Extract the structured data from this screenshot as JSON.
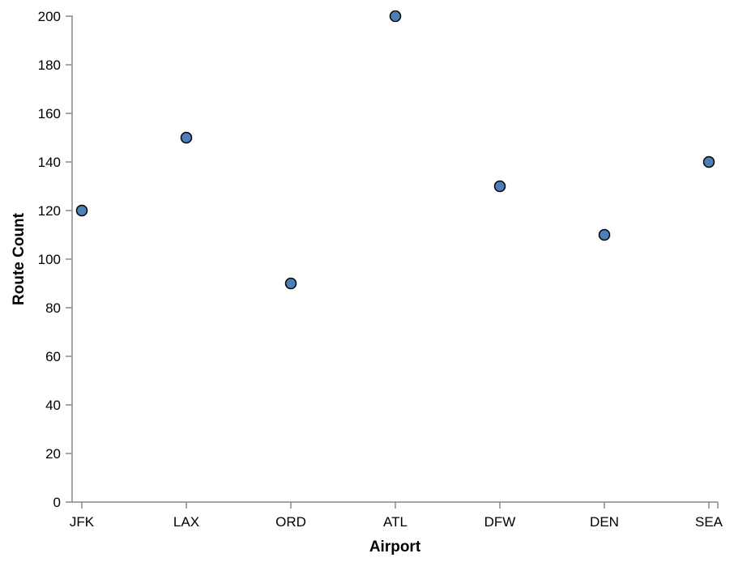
{
  "chart_data": {
    "type": "scatter",
    "categories": [
      "JFK",
      "LAX",
      "ORD",
      "ATL",
      "DFW",
      "DEN",
      "SEA"
    ],
    "values": [
      120,
      150,
      90,
      200,
      130,
      110,
      140
    ],
    "xlabel": "Airport",
    "ylabel": "Route Count",
    "ylim": [
      0,
      200
    ],
    "yticks": [
      0,
      20,
      40,
      60,
      80,
      100,
      120,
      140,
      160,
      180,
      200
    ],
    "grid": false,
    "colors": {
      "point_fill": "#4C7FB8",
      "point_stroke": "#000000",
      "axis": "#888888"
    }
  }
}
